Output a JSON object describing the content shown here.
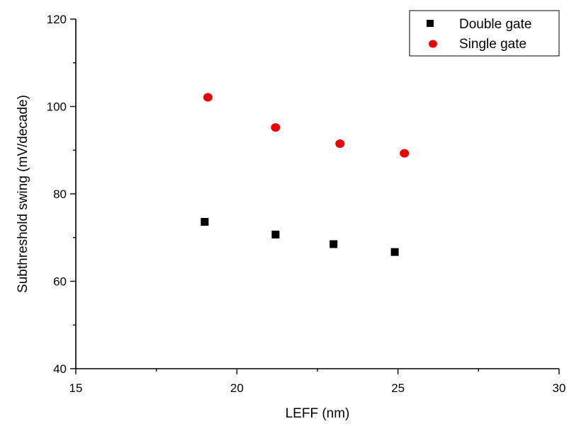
{
  "chart_data": {
    "type": "scatter",
    "title": "",
    "xlabel": "LEFF (nm)",
    "ylabel": "Subthreshold swing (mV/decade)",
    "xlim": [
      15,
      30
    ],
    "ylim": [
      40,
      120
    ],
    "xticks": [
      15,
      20,
      25,
      30
    ],
    "yticks": [
      40,
      60,
      80,
      100,
      120
    ],
    "grid": false,
    "legend_position": "top-right",
    "series": [
      {
        "name": "Double gate",
        "marker": "square",
        "color": "#000000",
        "points": [
          {
            "x": 19.0,
            "y": 73.6
          },
          {
            "x": 21.2,
            "y": 70.7
          },
          {
            "x": 23.0,
            "y": 68.5
          },
          {
            "x": 24.9,
            "y": 66.7
          }
        ]
      },
      {
        "name": "Single gate",
        "marker": "circle",
        "color": "#ee0000",
        "points": [
          {
            "x": 19.1,
            "y": 102.1
          },
          {
            "x": 21.2,
            "y": 95.2
          },
          {
            "x": 23.2,
            "y": 91.5
          },
          {
            "x": 25.2,
            "y": 89.3
          }
        ]
      }
    ]
  }
}
